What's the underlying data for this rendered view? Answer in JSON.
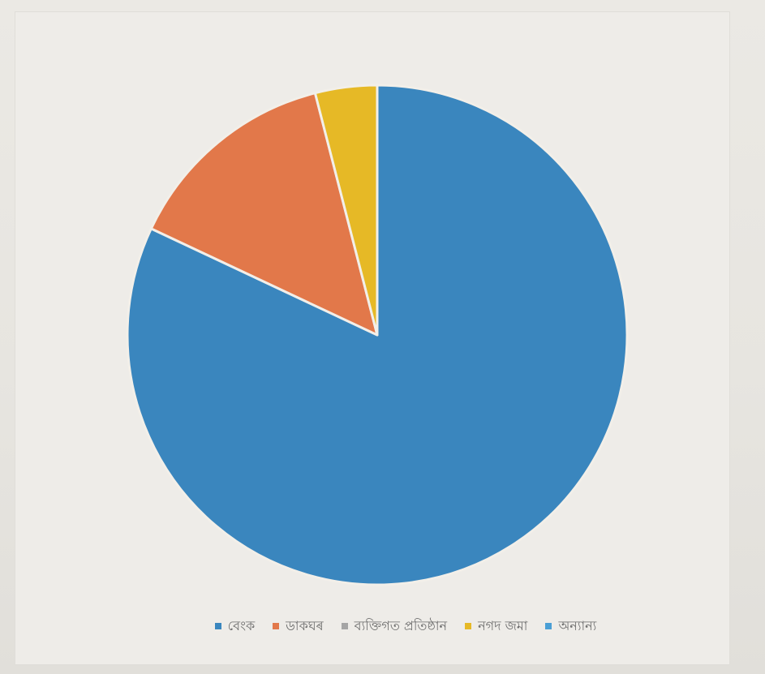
{
  "chart_data": {
    "type": "pie",
    "title": "",
    "series": [
      {
        "name": "বেংক",
        "value": 82,
        "color": "#3a86be"
      },
      {
        "name": "ডাকঘৰ",
        "value": 14,
        "color": "#e2784a"
      },
      {
        "name": "ব্যক্তিগত প্ৰতিষ্ঠান",
        "value": 0,
        "color": "#a5a5a5"
      },
      {
        "name": "নগদ জমা",
        "value": 4,
        "color": "#e6b926"
      },
      {
        "name": "অন্যান্য",
        "value": 0,
        "color": "#4a9fd5"
      }
    ],
    "legend_position": "bottom",
    "start_angle_deg": 0,
    "direction": "clockwise"
  }
}
